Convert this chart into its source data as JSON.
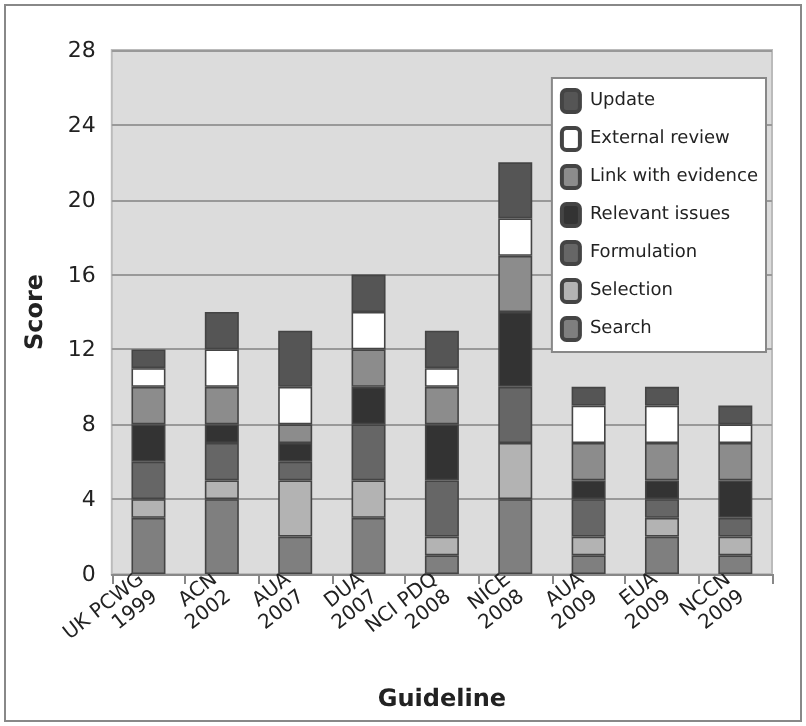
{
  "chart_data": {
    "type": "bar",
    "stacked": true,
    "xlabel": "Guideline",
    "ylabel": "Score",
    "categories": [
      "UK PCWG\n1999",
      "ACN\n2002",
      "AUA\n2007",
      "DUA\n2007",
      "NCI PDQ\n2008",
      "NICE\n2008",
      "AUA\n2009",
      "EUA\n2009",
      "NCCN\n2009"
    ],
    "series": [
      {
        "name": "Search",
        "color": "#7f7f7f",
        "values": [
          3,
          4,
          2,
          3,
          1,
          4,
          1,
          2,
          1
        ]
      },
      {
        "name": "Selection",
        "color": "#b3b3b3",
        "values": [
          1,
          1,
          3,
          2,
          1,
          3,
          1,
          1,
          1
        ]
      },
      {
        "name": "Formulation",
        "color": "#666666",
        "values": [
          2,
          2,
          1,
          3,
          3,
          3,
          2,
          1,
          1
        ]
      },
      {
        "name": "Relevant issues",
        "color": "#333333",
        "values": [
          2,
          1,
          1,
          2,
          3,
          4,
          1,
          1,
          2
        ]
      },
      {
        "name": "Link with evidence",
        "color": "#8c8c8c",
        "values": [
          2,
          2,
          1,
          2,
          2,
          3,
          2,
          2,
          2
        ]
      },
      {
        "name": "External review",
        "color": "#ffffff",
        "values": [
          1,
          2,
          2,
          2,
          1,
          2,
          2,
          2,
          1
        ]
      },
      {
        "name": "Update",
        "color": "#555555",
        "values": [
          1,
          2,
          3,
          2,
          2,
          3,
          1,
          1,
          1
        ]
      }
    ],
    "ylim": [
      0,
      28
    ],
    "yticks": [
      0,
      4,
      8,
      12,
      16,
      20,
      24,
      28
    ],
    "grid": "y",
    "legend": "top right"
  }
}
